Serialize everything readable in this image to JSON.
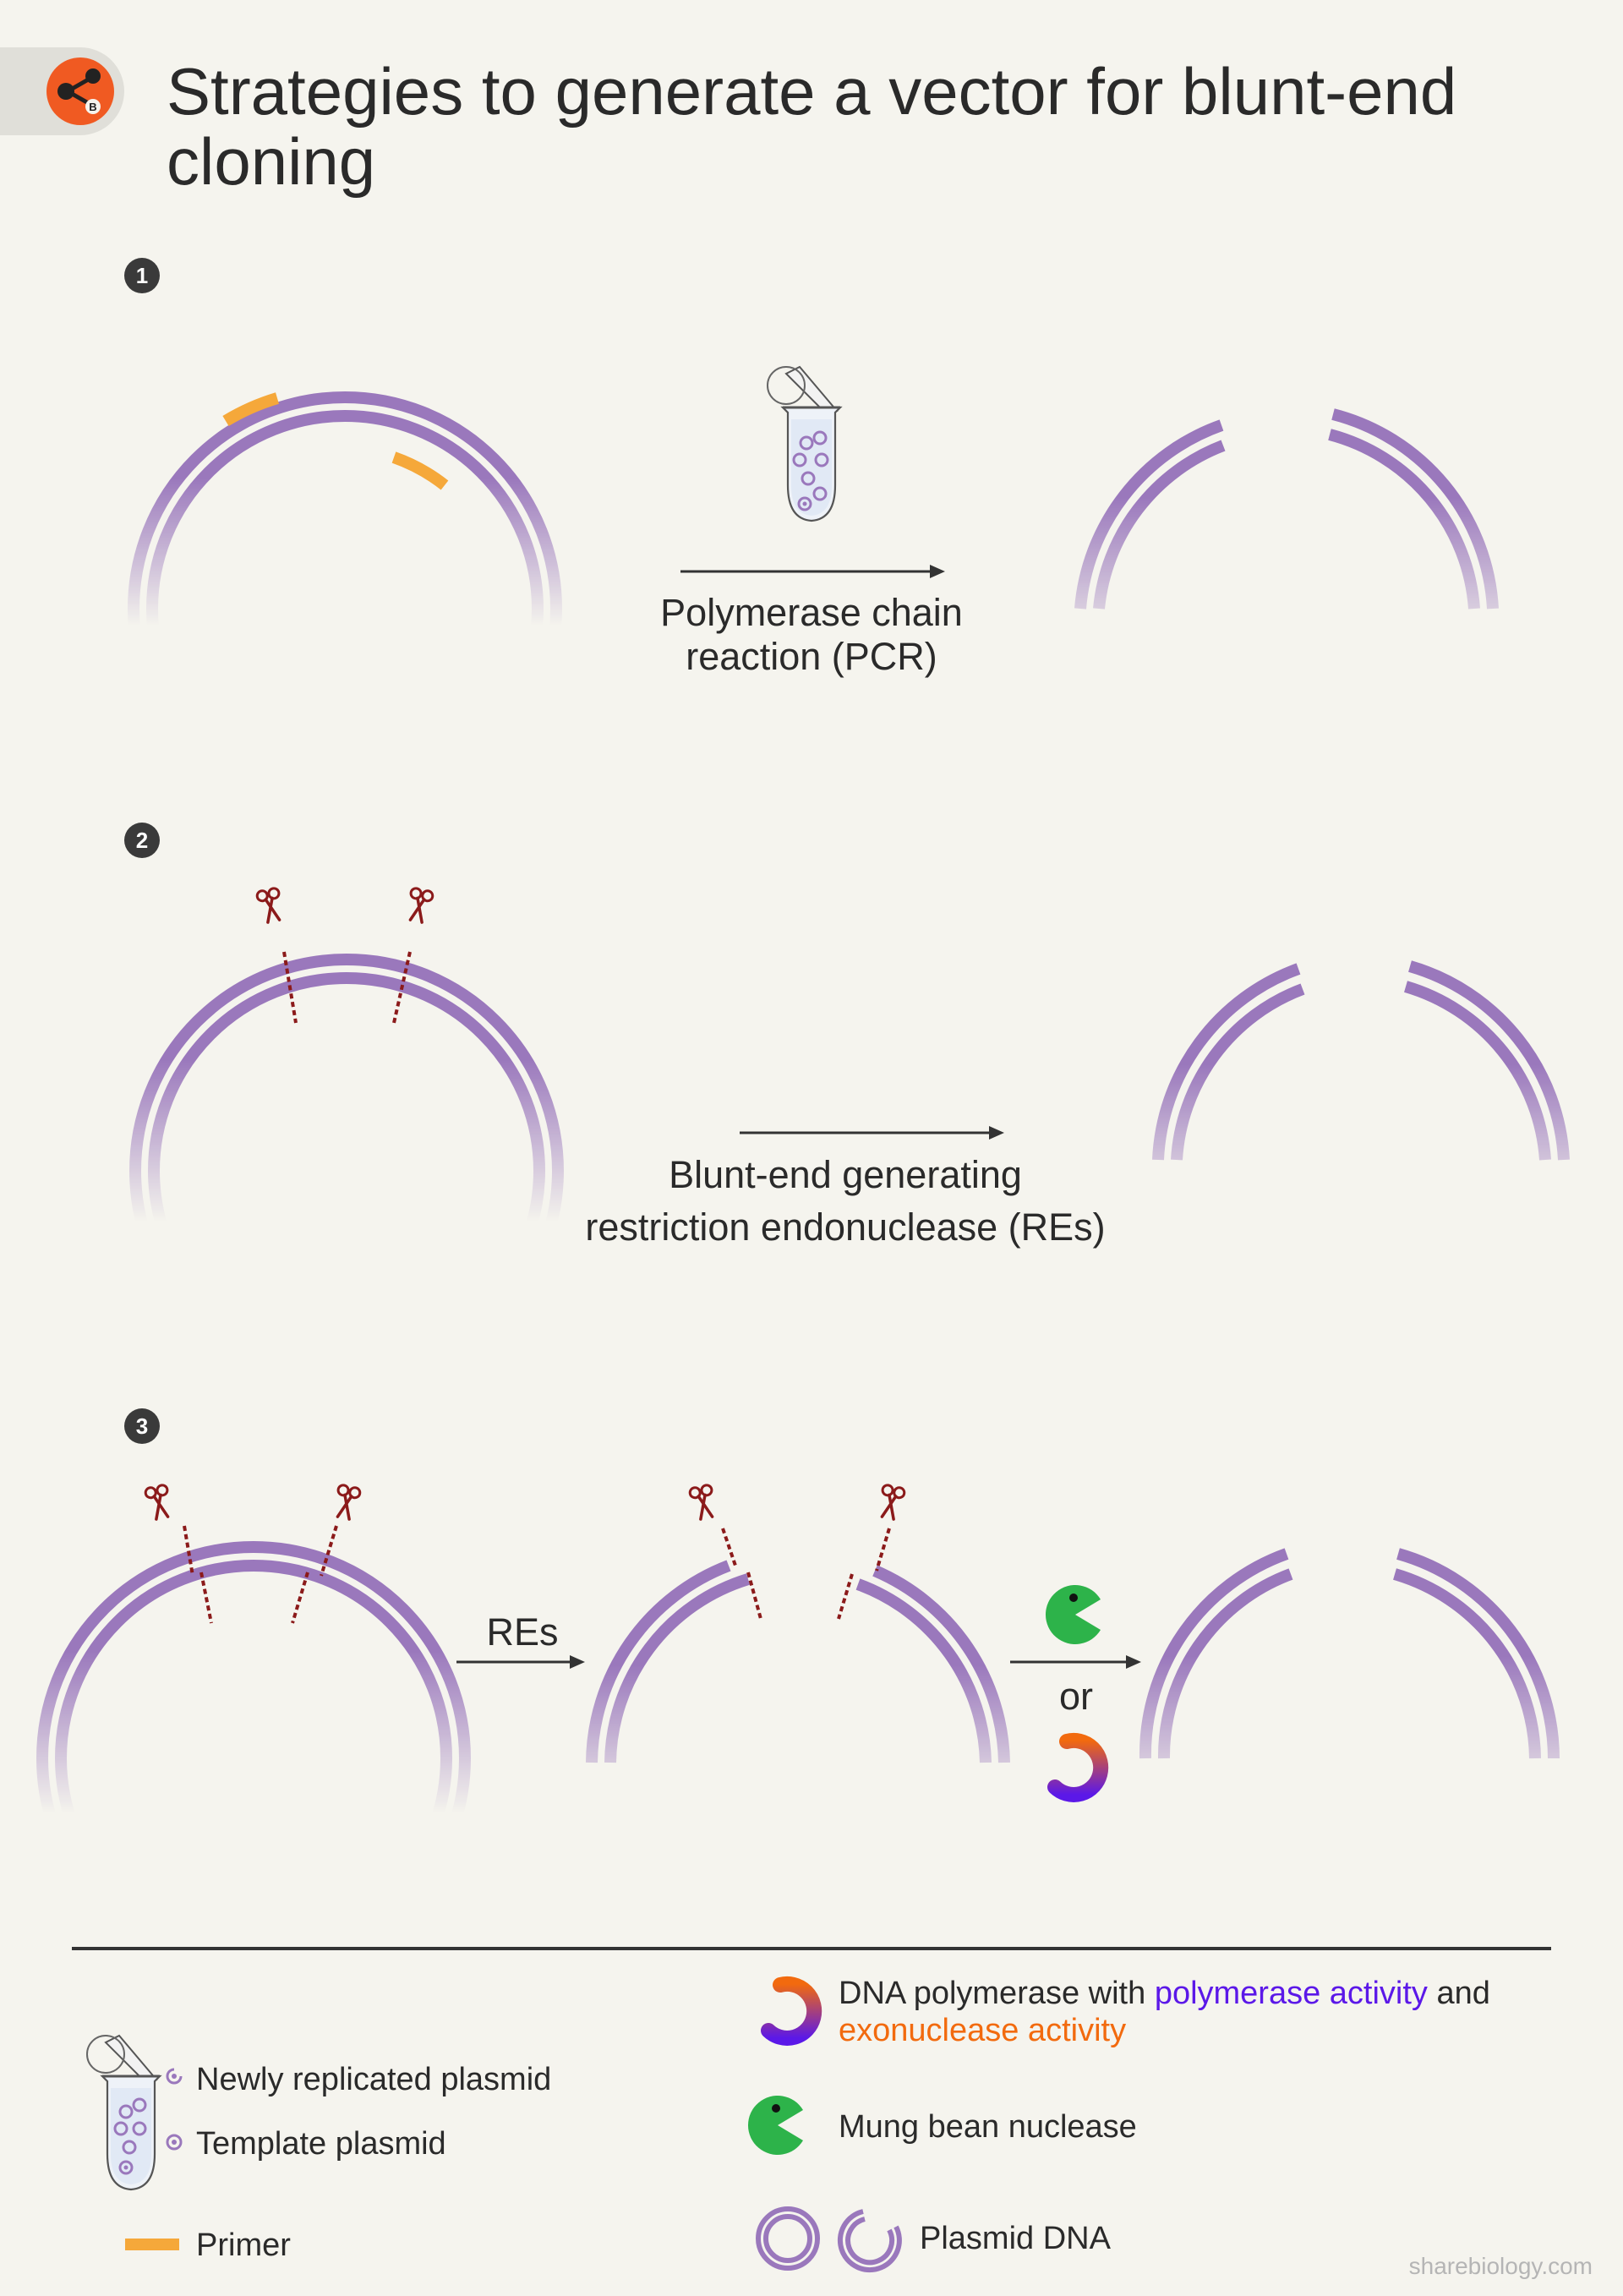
{
  "header": {
    "title_line1": "Strategies to generate a vector for blunt-end",
    "title_line2": "cloning",
    "logo_icon": "sharebiology-logo-icon"
  },
  "steps": [
    {
      "number": "1",
      "arrow_label_line1": "Polymerase chain",
      "arrow_label_line2": "reaction (PCR)"
    },
    {
      "number": "2",
      "arrow_label_line1": "Blunt-end generating",
      "arrow_label_line2": "restriction endonuclease (REs)"
    },
    {
      "number": "3",
      "arrow_label": "REs",
      "or_label": "or"
    }
  ],
  "legend": {
    "newly_replicated": "Newly replicated plasmid",
    "template": "Template plasmid",
    "primer": "Primer",
    "dna_pol_prefix": "DNA polymerase with ",
    "dna_pol_pol_activity": "polymerase activity",
    "dna_pol_and": " and",
    "dna_pol_exo_activity": "exonuclease activity",
    "mung_bean": "Mung bean nuclease",
    "plasmid_dna": "Plasmid DNA"
  },
  "watermark": "sharebiology.com",
  "colors": {
    "background": "#f5f4ee",
    "plasmid": "#9a78bc",
    "primer": "#f5a83a",
    "cut_line": "#8b1a1a",
    "polymerase_activity": "#5b18e8",
    "exonuclease_activity": "#f26a0e",
    "mung_bean": "#2db34a",
    "logo_orange": "#f05a22"
  }
}
